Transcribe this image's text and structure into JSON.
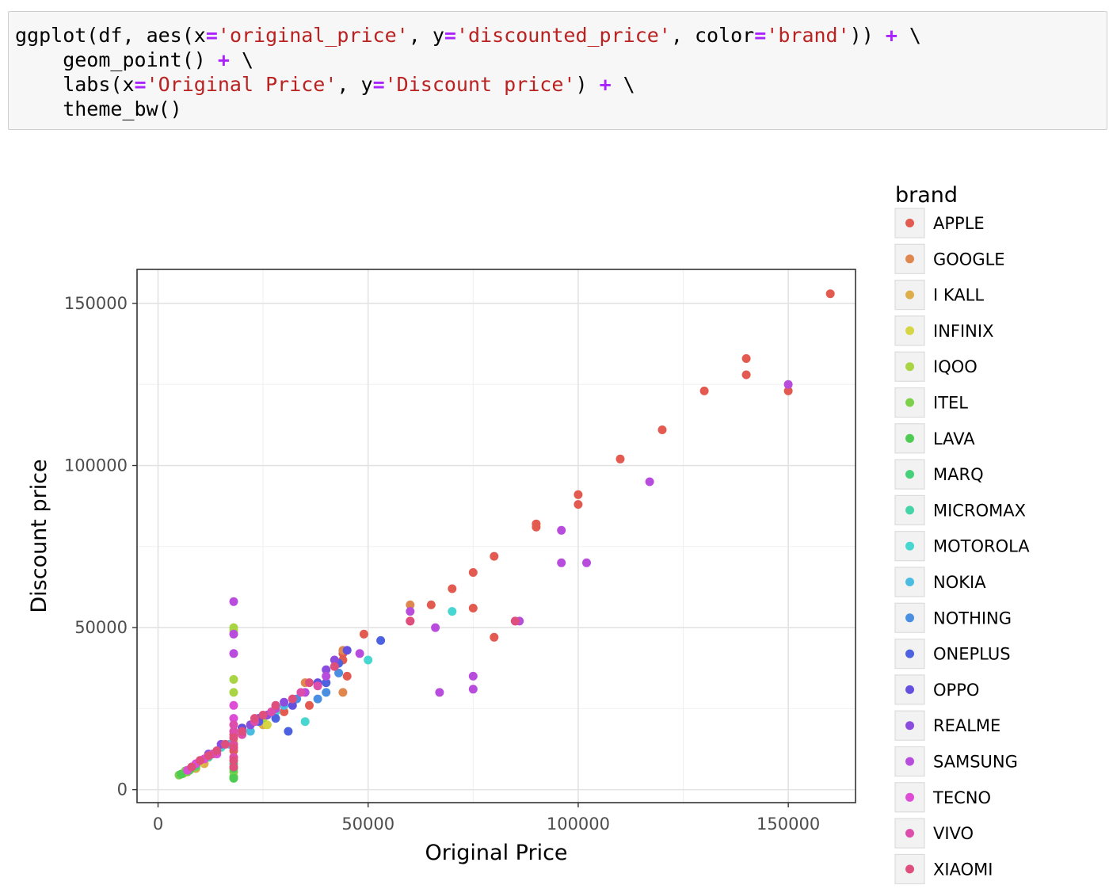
{
  "code": {
    "lines": [
      [
        {
          "t": "ggplot(df, aes(x",
          "c": "kw"
        },
        {
          "t": "=",
          "c": "op"
        },
        {
          "t": "'original_price'",
          "c": "str"
        },
        {
          "t": ", y",
          "c": "kw"
        },
        {
          "t": "=",
          "c": "op"
        },
        {
          "t": "'discounted_price'",
          "c": "str"
        },
        {
          "t": ", color",
          "c": "kw"
        },
        {
          "t": "=",
          "c": "op"
        },
        {
          "t": "'brand'",
          "c": "str"
        },
        {
          "t": ")) ",
          "c": "kw"
        },
        {
          "t": "+",
          "c": "op"
        },
        {
          "t": " \\",
          "c": "kw"
        }
      ],
      [
        {
          "t": "    geom_point() ",
          "c": "kw"
        },
        {
          "t": "+",
          "c": "op"
        },
        {
          "t": " \\",
          "c": "kw"
        }
      ],
      [
        {
          "t": "    labs(x",
          "c": "kw"
        },
        {
          "t": "=",
          "c": "op"
        },
        {
          "t": "'Original Price'",
          "c": "str"
        },
        {
          "t": ", y",
          "c": "kw"
        },
        {
          "t": "=",
          "c": "op"
        },
        {
          "t": "'Discount price'",
          "c": "str"
        },
        {
          "t": ") ",
          "c": "kw"
        },
        {
          "t": "+",
          "c": "op"
        },
        {
          "t": " \\",
          "c": "kw"
        }
      ],
      [
        {
          "t": "    theme_bw()",
          "c": "kw"
        }
      ]
    ]
  },
  "chart_data": {
    "type": "scatter",
    "xlabel": "Original Price",
    "ylabel": "Discount price",
    "xlim": [
      -5000,
      166000
    ],
    "ylim": [
      -4000,
      160500
    ],
    "xticks": [
      0,
      50000,
      100000,
      150000
    ],
    "yticks": [
      0,
      50000,
      100000,
      150000
    ],
    "grid": true,
    "legend": {
      "title": "brand",
      "placement": "right",
      "entries": [
        {
          "name": "APPLE",
          "color": "#e35b50"
        },
        {
          "name": "GOOGLE",
          "color": "#e0874f"
        },
        {
          "name": "I KALL",
          "color": "#ddae4a"
        },
        {
          "name": "INFINIX",
          "color": "#d6d544"
        },
        {
          "name": "IQOO",
          "color": "#a9d443"
        },
        {
          "name": "ITEL",
          "color": "#7cd04b"
        },
        {
          "name": "LAVA",
          "color": "#4ecb53"
        },
        {
          "name": "MARQ",
          "color": "#45d07a"
        },
        {
          "name": "MICROMAX",
          "color": "#45d4a8"
        },
        {
          "name": "MOTOROLA",
          "color": "#48d6d0"
        },
        {
          "name": "NOKIA",
          "color": "#4abbe1"
        },
        {
          "name": "NOTHING",
          "color": "#4a8fe1"
        },
        {
          "name": "ONEPLUS",
          "color": "#4c62e0"
        },
        {
          "name": "OPPO",
          "color": "#6450df"
        },
        {
          "name": "REALME",
          "color": "#8c4ddf"
        },
        {
          "name": "SAMSUNG",
          "color": "#b84ddd"
        },
        {
          "name": "TECNO",
          "color": "#dd4dd6"
        },
        {
          "name": "VIVO",
          "color": "#dd4dab"
        },
        {
          "name": "XIAOMI",
          "color": "#de4f7d"
        }
      ]
    },
    "series": [
      {
        "brand": "APPLE",
        "points": [
          [
            160000,
            153000
          ],
          [
            140000,
            133000
          ],
          [
            140000,
            128000
          ],
          [
            150000,
            123000
          ],
          [
            130000,
            123000
          ],
          [
            120000,
            111000
          ],
          [
            110000,
            102000
          ],
          [
            100000,
            91000
          ],
          [
            100000,
            88000
          ],
          [
            90000,
            82000
          ],
          [
            90000,
            81000
          ],
          [
            80000,
            72000
          ],
          [
            75000,
            67000
          ],
          [
            70000,
            62000
          ],
          [
            65000,
            57000
          ],
          [
            60000,
            52000
          ],
          [
            75000,
            56000
          ],
          [
            80000,
            47000
          ],
          [
            85000,
            52000
          ],
          [
            49000,
            48000
          ],
          [
            44000,
            42000
          ],
          [
            44000,
            40000
          ],
          [
            45000,
            35000
          ],
          [
            40000,
            33000
          ],
          [
            36000,
            26000
          ],
          [
            30000,
            24000
          ],
          [
            25000,
            22000
          ],
          [
            20000,
            19000
          ],
          [
            18000,
            17000
          ],
          [
            18000,
            12000
          ]
        ]
      },
      {
        "brand": "GOOGLE",
        "points": [
          [
            60000,
            57000
          ],
          [
            44000,
            43000
          ],
          [
            44000,
            30000
          ],
          [
            35000,
            33000
          ]
        ]
      },
      {
        "brand": "I KALL",
        "points": [
          [
            6000,
            5000
          ],
          [
            7000,
            5500
          ],
          [
            9000,
            6500
          ],
          [
            11000,
            8000
          ],
          [
            25000,
            20000
          ]
        ]
      },
      {
        "brand": "INFINIX",
        "points": [
          [
            8000,
            7000
          ],
          [
            10000,
            8500
          ],
          [
            12000,
            10000
          ],
          [
            18000,
            15000
          ],
          [
            26000,
            20000
          ]
        ]
      },
      {
        "brand": "IQOO",
        "points": [
          [
            18000,
            50000
          ],
          [
            18000,
            49000
          ],
          [
            18000,
            30000
          ],
          [
            18000,
            34000
          ],
          [
            25000,
            22000
          ],
          [
            22000,
            20000
          ]
        ]
      },
      {
        "brand": "ITEL",
        "points": [
          [
            5000,
            4500
          ],
          [
            6000,
            5000
          ],
          [
            7000,
            5500
          ],
          [
            8000,
            6500
          ],
          [
            6500,
            5800
          ],
          [
            9000,
            7000
          ],
          [
            18000,
            4000
          ],
          [
            18000,
            5500
          ]
        ]
      },
      {
        "brand": "LAVA",
        "points": [
          [
            5500,
            4800
          ],
          [
            7500,
            6000
          ],
          [
            18000,
            3500
          ],
          [
            18000,
            6500
          ]
        ]
      },
      {
        "brand": "MARQ",
        "points": [
          [
            9000,
            7500
          ],
          [
            18000,
            8000
          ]
        ]
      },
      {
        "brand": "MICROMAX",
        "points": [
          [
            8000,
            7000
          ],
          [
            12000,
            10000
          ]
        ]
      },
      {
        "brand": "MOTOROLA",
        "points": [
          [
            70000,
            55000
          ],
          [
            50000,
            40000
          ],
          [
            35000,
            21000
          ],
          [
            28000,
            24000
          ],
          [
            15000,
            13000
          ]
        ]
      },
      {
        "brand": "NOKIA",
        "points": [
          [
            13000,
            11000
          ],
          [
            17000,
            14000
          ],
          [
            22000,
            18000
          ],
          [
            30000,
            26000
          ]
        ]
      },
      {
        "brand": "NOTHING",
        "points": [
          [
            38000,
            28000
          ],
          [
            43000,
            36000
          ],
          [
            40000,
            30000
          ],
          [
            33000,
            28000
          ]
        ]
      },
      {
        "brand": "ONEPLUS",
        "points": [
          [
            53000,
            46000
          ],
          [
            43000,
            39000
          ],
          [
            31000,
            18000
          ],
          [
            28000,
            22000
          ],
          [
            24000,
            21000
          ],
          [
            40000,
            33000
          ]
        ]
      },
      {
        "brand": "OPPO",
        "points": [
          [
            45000,
            43000
          ],
          [
            20000,
            19000
          ],
          [
            24000,
            22000
          ],
          [
            32000,
            26000
          ],
          [
            38000,
            33000
          ]
        ]
      },
      {
        "brand": "REALME",
        "points": [
          [
            40000,
            37000
          ],
          [
            42000,
            40000
          ],
          [
            30000,
            27000
          ],
          [
            26000,
            23000
          ],
          [
            22000,
            20000
          ],
          [
            15000,
            14000
          ],
          [
            12000,
            11000
          ]
        ]
      },
      {
        "brand": "SAMSUNG",
        "points": [
          [
            150000,
            125000
          ],
          [
            117000,
            95000
          ],
          [
            96000,
            80000
          ],
          [
            96000,
            70000
          ],
          [
            102000,
            70000
          ],
          [
            86000,
            52000
          ],
          [
            66000,
            50000
          ],
          [
            75000,
            35000
          ],
          [
            75000,
            31000
          ],
          [
            67000,
            30000
          ],
          [
            60000,
            55000
          ],
          [
            48000,
            42000
          ],
          [
            40000,
            35000
          ],
          [
            18000,
            58000
          ],
          [
            18000,
            42000
          ],
          [
            18000,
            48000
          ],
          [
            35000,
            30000
          ],
          [
            28000,
            25000
          ]
        ]
      },
      {
        "brand": "TECNO",
        "points": [
          [
            7000,
            6000
          ],
          [
            9000,
            8000
          ],
          [
            11000,
            9500
          ],
          [
            14000,
            11000
          ],
          [
            18000,
            26000
          ],
          [
            18000,
            22000
          ]
        ]
      },
      {
        "brand": "VIVO",
        "points": [
          [
            18000,
            20000
          ],
          [
            18000,
            18000
          ],
          [
            18000,
            14000
          ],
          [
            18000,
            10000
          ],
          [
            20000,
            17000
          ],
          [
            23000,
            21000
          ],
          [
            27000,
            24000
          ],
          [
            34000,
            30000
          ],
          [
            38000,
            32000
          ],
          [
            10000,
            9000
          ],
          [
            13000,
            11000
          ]
        ]
      },
      {
        "brand": "XIAOMI",
        "points": [
          [
            8000,
            7000
          ],
          [
            10000,
            9000
          ],
          [
            12000,
            10500
          ],
          [
            14000,
            12000
          ],
          [
            16000,
            14000
          ],
          [
            18000,
            16000
          ],
          [
            18000,
            13000
          ],
          [
            18000,
            9000
          ],
          [
            18000,
            7000
          ],
          [
            20000,
            18000
          ],
          [
            23000,
            22000
          ],
          [
            25000,
            23000
          ],
          [
            28000,
            26000
          ],
          [
            32000,
            28000
          ],
          [
            36000,
            33000
          ],
          [
            42000,
            38000
          ],
          [
            85000,
            52000
          ],
          [
            60000,
            52000
          ]
        ]
      }
    ]
  }
}
